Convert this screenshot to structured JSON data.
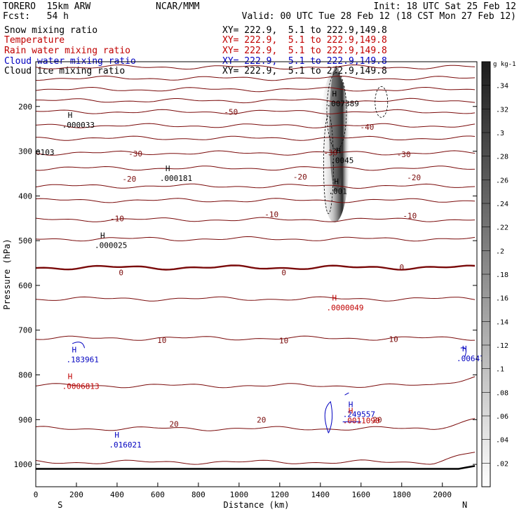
{
  "header": {
    "model": "TORERO  15km ARW",
    "org": "NCAR/MMM",
    "init": "Init: 18 UTC Sat 25 Feb 12",
    "fcst": "Fcst:   54 h",
    "valid": "Valid: 00 UTC Tue 28 Feb 12 (18 CST Mon 27 Feb 12)"
  },
  "fields": [
    {
      "name": "Snow mixing ratio",
      "xy": "XY= 222.9,  5.1 to 222.9,149.8",
      "color": "#000000"
    },
    {
      "name": "Temperature",
      "xy": "XY= 222.9,  5.1 to 222.9,149.8",
      "color": "#c00000"
    },
    {
      "name": "Rain water mixing ratio",
      "xy": "XY= 222.9,  5.1 to 222.9,149.8",
      "color": "#c00000"
    },
    {
      "name": "Cloud water mixing ratio",
      "xy": "XY= 222.9,  5.1 to 222.9,149.8",
      "color": "#0000c0"
    },
    {
      "name": "Cloud ice mixing ratio",
      "xy": "XY= 222.9,  5.1 to 222.9,149.8",
      "color": "#000000"
    }
  ],
  "chart_data": {
    "type": "contour",
    "xlabel": "Distance (km)",
    "ylabel": "Pressure (hPa)",
    "xlim": [
      0,
      2170
    ],
    "ylim": [
      1050,
      100
    ],
    "x_ticks": [
      0,
      200,
      400,
      600,
      800,
      1000,
      1200,
      1400,
      1600,
      1800,
      2000
    ],
    "y_ticks": [
      200,
      300,
      400,
      500,
      600,
      700,
      800,
      900,
      1000
    ],
    "left_end_label": "S",
    "right_end_label": "N",
    "colorbar": {
      "unit": "g kg-1",
      "ticks": [
        ".02",
        ".04",
        ".06",
        ".08",
        ".1",
        ".12",
        ".14",
        ".16",
        ".18",
        ".2",
        ".22",
        ".24",
        ".26",
        ".28",
        ".3",
        ".32",
        ".34"
      ]
    },
    "temperature_labels": [
      {
        "text": "-50",
        "x": 960,
        "p": 212
      },
      {
        "text": "-40",
        "x": 1630,
        "p": 246
      },
      {
        "text": "-30",
        "x": 490,
        "p": 305
      },
      {
        "text": "-30",
        "x": 1450,
        "p": 303
      },
      {
        "text": "-30",
        "x": 1810,
        "p": 307
      },
      {
        "text": "-20",
        "x": 460,
        "p": 362
      },
      {
        "text": "-20",
        "x": 1300,
        "p": 357
      },
      {
        "text": "-20",
        "x": 1860,
        "p": 359
      },
      {
        "text": "-10",
        "x": 400,
        "p": 450
      },
      {
        "text": "-10",
        "x": 1160,
        "p": 441
      },
      {
        "text": "-10",
        "x": 1840,
        "p": 444
      },
      {
        "text": "0",
        "x": 420,
        "p": 571
      },
      {
        "text": "0",
        "x": 1220,
        "p": 571
      },
      {
        "text": "0",
        "x": 1800,
        "p": 559
      },
      {
        "text": "10",
        "x": 620,
        "p": 722
      },
      {
        "text": "10",
        "x": 1220,
        "p": 723
      },
      {
        "text": "10",
        "x": 1760,
        "p": 720
      },
      {
        "text": "20",
        "x": 680,
        "p": 910
      },
      {
        "text": "20",
        "x": 1110,
        "p": 900
      },
      {
        "text": "20",
        "x": 1680,
        "p": 900
      }
    ],
    "temperature_isotherms_hPa_at_left_edge": [
      112,
      137,
      162,
      187,
      212,
      243,
      271,
      304,
      338,
      378,
      410,
      453,
      496,
      560,
      630,
      718,
      824,
      920,
      995
    ],
    "maxima": [
      {
        "value": ".007389",
        "x": 1430,
        "p": 190,
        "color": "#000000"
      },
      {
        "value": ".000033",
        "x": 130,
        "p": 238,
        "color": "#000000"
      },
      {
        "value": ".0045",
        "x": 1450,
        "p": 317,
        "color": "#000000"
      },
      {
        "value": ".000181",
        "x": 610,
        "p": 357,
        "color": "#000000"
      },
      {
        "value": ".001",
        "x": 1440,
        "p": 386,
        "color": "#000000"
      },
      {
        "value": ".000025",
        "x": 290,
        "p": 507,
        "color": "#000000"
      },
      {
        "value": ".0000049",
        "x": 1430,
        "p": 646,
        "color": "#c00000"
      },
      {
        "value": ".183961",
        "x": 150,
        "p": 762,
        "color": "#0000c0"
      },
      {
        "value": ".006470",
        "x": 2070,
        "p": 760,
        "color": "#0000c0"
      },
      {
        "value": ".0006813",
        "x": 130,
        "p": 822,
        "color": "#c00000"
      },
      {
        "value": ".249557",
        "x": 1510,
        "p": 885,
        "color": "#0000c0"
      },
      {
        "value": ".0011090",
        "x": 1510,
        "p": 899,
        "color": "#c00000"
      },
      {
        "value": ".016021",
        "x": 360,
        "p": 953,
        "color": "#0000c0"
      }
    ],
    "edge_labels": [
      {
        "text": "0103",
        "x": 0,
        "p": 302
      }
    ]
  }
}
